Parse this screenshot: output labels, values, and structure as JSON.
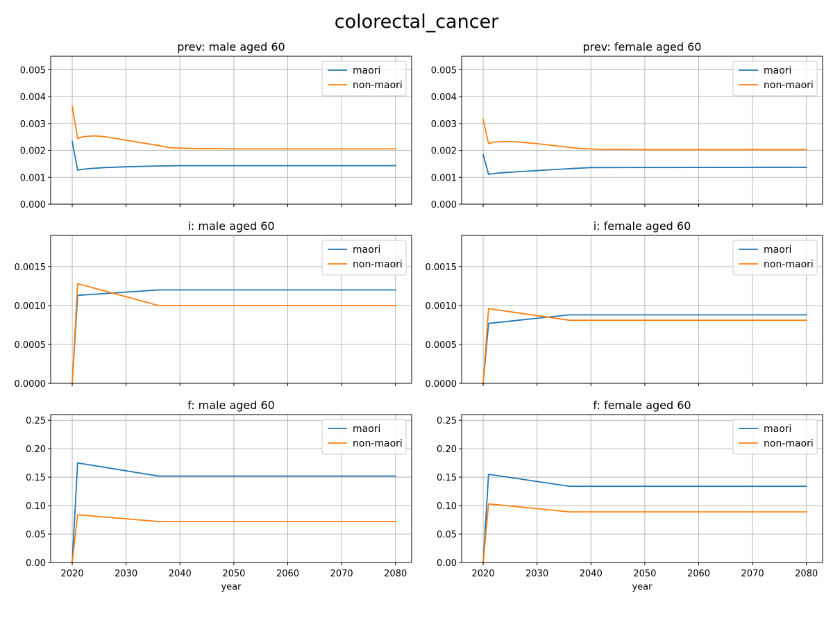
{
  "figure": {
    "title": "colorectal_cancer"
  },
  "colors": {
    "maori": "#1f77b4",
    "non_maori": "#ff7f0e"
  },
  "chart_data": [
    {
      "type": "line",
      "title": "prev: male aged 60",
      "xlabel": "",
      "xlim": [
        2016,
        2083
      ],
      "ylim": [
        0,
        0.0055
      ],
      "xticks": [
        "2020",
        "2030",
        "2040",
        "2050",
        "2060",
        "2070",
        "2080"
      ],
      "xtick_values": [
        2020,
        2030,
        2040,
        2050,
        2060,
        2070,
        2080
      ],
      "show_xticklabels": false,
      "yticks": [
        "0.000",
        "0.001",
        "0.002",
        "0.003",
        "0.004",
        "0.005"
      ],
      "ytick_values": [
        0,
        0.001,
        0.002,
        0.003,
        0.004,
        0.005
      ],
      "legend": "top-right",
      "grid": true,
      "series": [
        {
          "name": "maori",
          "color": "#1f77b4",
          "x": [
            2020,
            2021,
            2023,
            2026,
            2030,
            2036,
            2040,
            2080
          ],
          "y": [
            0.00233,
            0.00127,
            0.00132,
            0.00136,
            0.00139,
            0.00142,
            0.00143,
            0.00143
          ]
        },
        {
          "name": "non-maori",
          "color": "#ff7f0e",
          "x": [
            2020,
            2021,
            2022,
            2024,
            2026,
            2030,
            2036,
            2038,
            2042,
            2050,
            2080
          ],
          "y": [
            0.00364,
            0.00244,
            0.00251,
            0.00254,
            0.00251,
            0.00238,
            0.00218,
            0.0021,
            0.00207,
            0.00206,
            0.00206
          ]
        }
      ]
    },
    {
      "type": "line",
      "title": "prev: female aged 60",
      "xlabel": "",
      "xlim": [
        2016,
        2083
      ],
      "ylim": [
        0,
        0.0055
      ],
      "xticks": [
        "2020",
        "2030",
        "2040",
        "2050",
        "2060",
        "2070",
        "2080"
      ],
      "xtick_values": [
        2020,
        2030,
        2040,
        2050,
        2060,
        2070,
        2080
      ],
      "show_xticklabels": false,
      "yticks": [
        "0.000",
        "0.001",
        "0.002",
        "0.003",
        "0.004",
        "0.005"
      ],
      "ytick_values": [
        0,
        0.001,
        0.002,
        0.003,
        0.004,
        0.005
      ],
      "legend": "top-right",
      "grid": true,
      "series": [
        {
          "name": "maori",
          "color": "#1f77b4",
          "x": [
            2020,
            2021,
            2023,
            2026,
            2030,
            2036,
            2040,
            2080
          ],
          "y": [
            0.00184,
            0.00111,
            0.00116,
            0.0012,
            0.00125,
            0.00132,
            0.00136,
            0.00137
          ]
        },
        {
          "name": "non-maori",
          "color": "#ff7f0e",
          "x": [
            2020,
            2021,
            2022,
            2024,
            2026,
            2030,
            2036,
            2038,
            2042,
            2050,
            2080
          ],
          "y": [
            0.00315,
            0.00225,
            0.00231,
            0.00233,
            0.00232,
            0.00225,
            0.00211,
            0.00207,
            0.00204,
            0.00203,
            0.00203
          ]
        }
      ]
    },
    {
      "type": "line",
      "title": "i: male aged 60",
      "xlabel": "",
      "xlim": [
        2016,
        2083
      ],
      "ylim": [
        0,
        0.0019
      ],
      "xticks": [
        "2020",
        "2030",
        "2040",
        "2050",
        "2060",
        "2070",
        "2080"
      ],
      "xtick_values": [
        2020,
        2030,
        2040,
        2050,
        2060,
        2070,
        2080
      ],
      "show_xticklabels": false,
      "yticks": [
        "0.0000",
        "0.0005",
        "0.0010",
        "0.0015"
      ],
      "ytick_values": [
        0,
        0.0005,
        0.001,
        0.0015
      ],
      "legend": "top-right",
      "grid": true,
      "series": [
        {
          "name": "maori",
          "color": "#1f77b4",
          "x": [
            2020,
            2021,
            2036,
            2080
          ],
          "y": [
            0,
            0.00113,
            0.0012,
            0.0012
          ]
        },
        {
          "name": "non-maori",
          "color": "#ff7f0e",
          "x": [
            2020,
            2021,
            2036,
            2080
          ],
          "y": [
            0,
            0.00128,
            0.001,
            0.001
          ]
        }
      ]
    },
    {
      "type": "line",
      "title": "i: female aged 60",
      "xlabel": "",
      "xlim": [
        2016,
        2083
      ],
      "ylim": [
        0,
        0.0019
      ],
      "xticks": [
        "2020",
        "2030",
        "2040",
        "2050",
        "2060",
        "2070",
        "2080"
      ],
      "xtick_values": [
        2020,
        2030,
        2040,
        2050,
        2060,
        2070,
        2080
      ],
      "show_xticklabels": false,
      "yticks": [
        "0.0000",
        "0.0005",
        "0.0010",
        "0.0015"
      ],
      "ytick_values": [
        0,
        0.0005,
        0.001,
        0.0015
      ],
      "legend": "top-right",
      "grid": true,
      "series": [
        {
          "name": "maori",
          "color": "#1f77b4",
          "x": [
            2020,
            2021,
            2036,
            2080
          ],
          "y": [
            0,
            0.00077,
            0.00088,
            0.00088
          ]
        },
        {
          "name": "non-maori",
          "color": "#ff7f0e",
          "x": [
            2020,
            2021,
            2036,
            2080
          ],
          "y": [
            0,
            0.00096,
            0.00081,
            0.00081
          ]
        }
      ]
    },
    {
      "type": "line",
      "title": "f: male aged 60",
      "xlabel": "year",
      "xlim": [
        2016,
        2083
      ],
      "ylim": [
        0,
        0.26
      ],
      "xticks": [
        "2020",
        "2030",
        "2040",
        "2050",
        "2060",
        "2070",
        "2080"
      ],
      "xtick_values": [
        2020,
        2030,
        2040,
        2050,
        2060,
        2070,
        2080
      ],
      "show_xticklabels": true,
      "yticks": [
        "0.00",
        "0.05",
        "0.10",
        "0.15",
        "0.20",
        "0.25"
      ],
      "ytick_values": [
        0,
        0.05,
        0.1,
        0.15,
        0.2,
        0.25
      ],
      "legend": "top-right",
      "grid": true,
      "series": [
        {
          "name": "maori",
          "color": "#1f77b4",
          "x": [
            2020,
            2021,
            2036,
            2080
          ],
          "y": [
            0,
            0.175,
            0.152,
            0.152
          ]
        },
        {
          "name": "non-maori",
          "color": "#ff7f0e",
          "x": [
            2020,
            2021,
            2036,
            2080
          ],
          "y": [
            0,
            0.084,
            0.072,
            0.072
          ]
        }
      ]
    },
    {
      "type": "line",
      "title": "f: female aged 60",
      "xlabel": "year",
      "xlim": [
        2016,
        2083
      ],
      "ylim": [
        0,
        0.26
      ],
      "xticks": [
        "2020",
        "2030",
        "2040",
        "2050",
        "2060",
        "2070",
        "2080"
      ],
      "xtick_values": [
        2020,
        2030,
        2040,
        2050,
        2060,
        2070,
        2080
      ],
      "show_xticklabels": true,
      "yticks": [
        "0.00",
        "0.05",
        "0.10",
        "0.15",
        "0.20",
        "0.25"
      ],
      "ytick_values": [
        0,
        0.05,
        0.1,
        0.15,
        0.2,
        0.25
      ],
      "legend": "top-right",
      "grid": true,
      "series": [
        {
          "name": "maori",
          "color": "#1f77b4",
          "x": [
            2020,
            2021,
            2036,
            2080
          ],
          "y": [
            0,
            0.155,
            0.134,
            0.134
          ]
        },
        {
          "name": "non-maori",
          "color": "#ff7f0e",
          "x": [
            2020,
            2021,
            2036,
            2080
          ],
          "y": [
            0,
            0.103,
            0.089,
            0.089
          ]
        }
      ]
    }
  ]
}
